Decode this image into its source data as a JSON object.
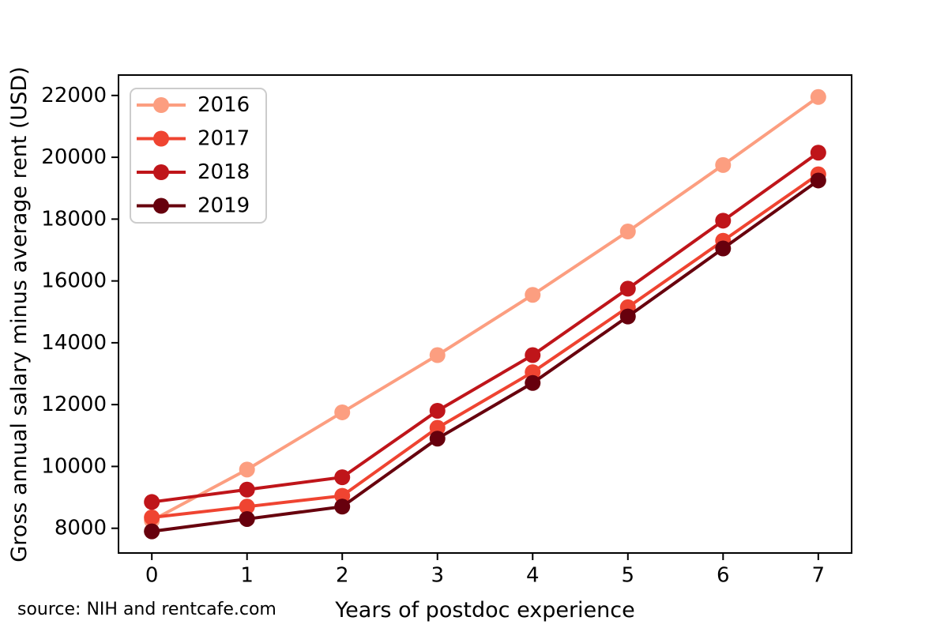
{
  "chart_data": {
    "type": "line",
    "title": "",
    "xlabel": "Years of postdoc experience",
    "ylabel": "Gross annual salary minus average rent (USD)",
    "source": "source: NIH and rentcafe.com",
    "x": [
      0,
      1,
      2,
      3,
      4,
      5,
      6,
      7
    ],
    "series": [
      {
        "name": "2016",
        "color": "#fc9e80",
        "values": [
          8250,
          9900,
          11750,
          13600,
          15550,
          17600,
          19750,
          21950
        ]
      },
      {
        "name": "2017",
        "color": "#ef4431",
        "values": [
          8350,
          8700,
          9050,
          11250,
          13050,
          15150,
          17300,
          19450
        ]
      },
      {
        "name": "2018",
        "color": "#bf151a",
        "values": [
          8850,
          9250,
          9650,
          11800,
          13600,
          15750,
          17950,
          20150
        ]
      },
      {
        "name": "2019",
        "color": "#67000d",
        "values": [
          7900,
          8300,
          8700,
          10900,
          12700,
          14850,
          17050,
          19250
        ]
      }
    ],
    "xticks": [
      0,
      1,
      2,
      3,
      4,
      5,
      6,
      7
    ],
    "yticks": [
      8000,
      10000,
      12000,
      14000,
      16000,
      18000,
      20000,
      22000
    ],
    "xlim": [
      -0.35,
      7.35
    ],
    "ylim": [
      7200,
      22660
    ],
    "grid": false,
    "legend_position": "upper left",
    "axis_color": "#000000",
    "legend_border_color": "#cccccc",
    "legend_background": "#ffffff"
  }
}
